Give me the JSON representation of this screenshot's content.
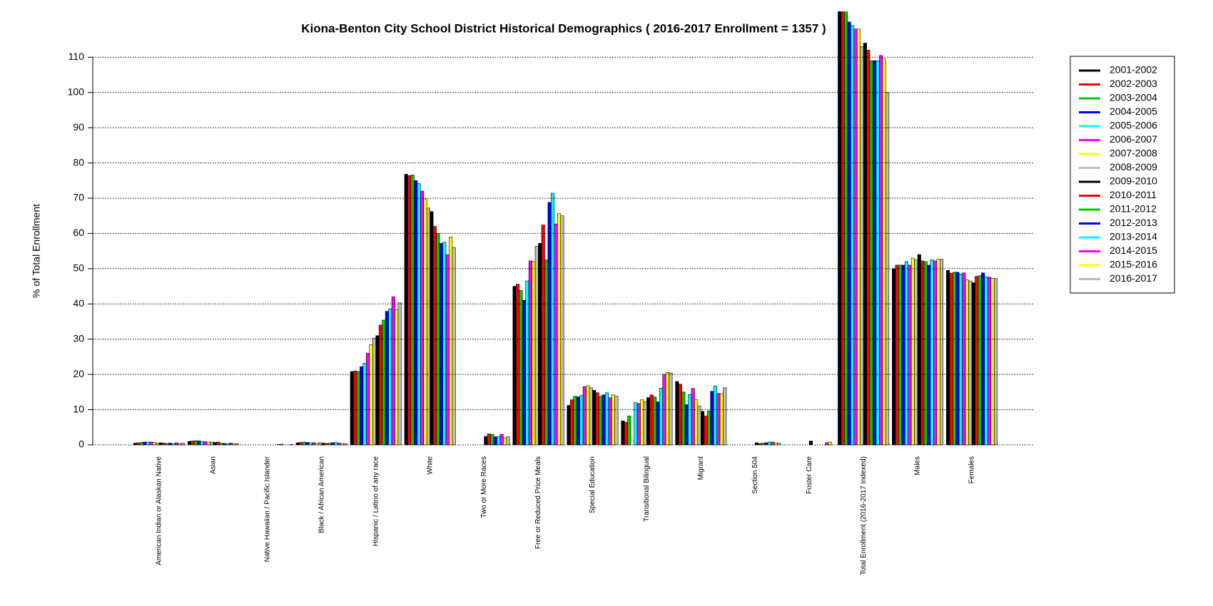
{
  "chart_data": {
    "type": "bar",
    "title": "Kiona-Benton City School District Historical Demographics  ( 2016-2017 Enrollment =  1357 )",
    "y_label": "% of Total Enrollment",
    "categories": [
      "American Indian or Alaskan Native",
      "Asian",
      "Native Hawaiian / Pacific Islander",
      "Black / African American",
      "Hispanic / Latino of any race",
      "White",
      "Two or More Races",
      "Free or Reduced Price Meals",
      "Special Education",
      "Transitional Bilingual",
      "Migrant",
      "Section 504",
      "Foster Care",
      "Total Enrollment (2016-2017 indexed)",
      "Males",
      "Females"
    ],
    "ylim": [
      0,
      123
    ],
    "yticks": [
      0,
      10,
      20,
      30,
      40,
      50,
      60,
      70,
      80,
      90,
      100,
      110
    ],
    "grid": true,
    "legend_position": "right",
    "series": [
      {
        "name": "2001-2002",
        "color": "#000000",
        "values": [
          0.5,
          1.0,
          0,
          0.6,
          20.8,
          76.8,
          0,
          45.0,
          11.2,
          6.8,
          18.0,
          0,
          0,
          125,
          50.0,
          49.5
        ]
      },
      {
        "name": "2002-2003",
        "color": "#ff0000",
        "values": [
          0.6,
          1.1,
          0,
          0.7,
          21.0,
          76.4,
          0,
          45.6,
          12.8,
          6.4,
          17.2,
          0,
          0,
          125,
          51.0,
          48.7
        ]
      },
      {
        "name": "2003-2004",
        "color": "#00cd00",
        "values": [
          0.7,
          1.2,
          0,
          0.8,
          20.8,
          76.6,
          0,
          43.8,
          13.8,
          8.2,
          15.0,
          0,
          0,
          124,
          51.0,
          49.0
        ]
      },
      {
        "name": "2004-2005",
        "color": "#0000ff",
        "values": [
          0.8,
          1.1,
          0,
          0.7,
          22.2,
          75.0,
          0,
          41.0,
          13.6,
          0,
          11.4,
          0,
          0,
          120,
          51.0,
          49.0
        ]
      },
      {
        "name": "2005-2006",
        "color": "#00ffff",
        "values": [
          0.8,
          1.0,
          0,
          0.6,
          23.2,
          74.2,
          0,
          46.5,
          14.0,
          12.0,
          14.3,
          0,
          0,
          119,
          52.0,
          48.5
        ]
      },
      {
        "name": "2006-2007",
        "color": "#ff00ff",
        "values": [
          0.8,
          0.9,
          0,
          0.6,
          26.0,
          72.0,
          0,
          52.2,
          16.5,
          11.7,
          16.0,
          0,
          0,
          118,
          51.0,
          48.8
        ]
      },
      {
        "name": "2007-2008",
        "color": "#ffff00",
        "values": [
          0.7,
          0.8,
          0,
          0.5,
          28.4,
          69.8,
          0,
          52.0,
          16.8,
          12.8,
          12.8,
          0,
          0,
          118,
          53.0,
          46.8
        ]
      },
      {
        "name": "2008-2009",
        "color": "#bebebe",
        "values": [
          0.5,
          0.8,
          0,
          0.6,
          30.3,
          67.2,
          0,
          56.4,
          16.2,
          12.3,
          11.0,
          0,
          0,
          113,
          52.5,
          46.5
        ]
      },
      {
        "name": "2009-2010",
        "color": "#000000",
        "values": [
          0.6,
          0.7,
          0,
          0.5,
          31.0,
          66.2,
          2.4,
          57.2,
          15.5,
          13.4,
          9.5,
          0.6,
          1.1,
          114,
          54.0,
          46.0
        ]
      },
      {
        "name": "2010-2011",
        "color": "#ff0000",
        "values": [
          0.5,
          0.8,
          0,
          0.4,
          34.0,
          62.0,
          3.1,
          62.4,
          14.8,
          14.2,
          8.2,
          0.4,
          0,
          112,
          52.2,
          47.8
        ]
      },
      {
        "name": "2011-2012",
        "color": "#00cd00",
        "values": [
          0.4,
          0.5,
          0,
          0.5,
          35.4,
          60.0,
          3.0,
          52.5,
          13.8,
          13.6,
          9.6,
          0.5,
          0,
          109,
          52.0,
          48.0
        ]
      },
      {
        "name": "2012-2013",
        "color": "#0000ff",
        "values": [
          0.5,
          0.4,
          0.1,
          0.6,
          37.9,
          57.2,
          2.3,
          68.8,
          14.2,
          12.2,
          15.2,
          0.6,
          0,
          109,
          51.0,
          48.8
        ]
      },
      {
        "name": "2013-2014",
        "color": "#00ffff",
        "values": [
          0.4,
          0.3,
          0.2,
          0.7,
          38.6,
          57.5,
          2.4,
          71.4,
          14.8,
          16.1,
          16.7,
          0.8,
          0,
          109,
          52.5,
          47.7
        ]
      },
      {
        "name": "2014-2015",
        "color": "#ff00ff",
        "values": [
          0.6,
          0.5,
          0,
          0.5,
          42.0,
          54.0,
          3.0,
          62.7,
          13.4,
          20.0,
          14.6,
          0.8,
          0.6,
          110.5,
          52.2,
          47.6
        ]
      },
      {
        "name": "2015-2016",
        "color": "#ffff00",
        "values": [
          0.3,
          0.4,
          0,
          0.4,
          38.3,
          59.0,
          2.0,
          65.6,
          14.2,
          20.5,
          14.4,
          0.6,
          0.8,
          109.5,
          52.7,
          47.2
        ]
      },
      {
        "name": "2016-2017",
        "color": "#bebebe",
        "values": [
          0.5,
          0.3,
          0.1,
          0.3,
          40.3,
          56.0,
          2.3,
          65.0,
          13.8,
          20.4,
          16.2,
          0.5,
          0,
          100,
          52.7,
          47.2
        ]
      }
    ]
  }
}
